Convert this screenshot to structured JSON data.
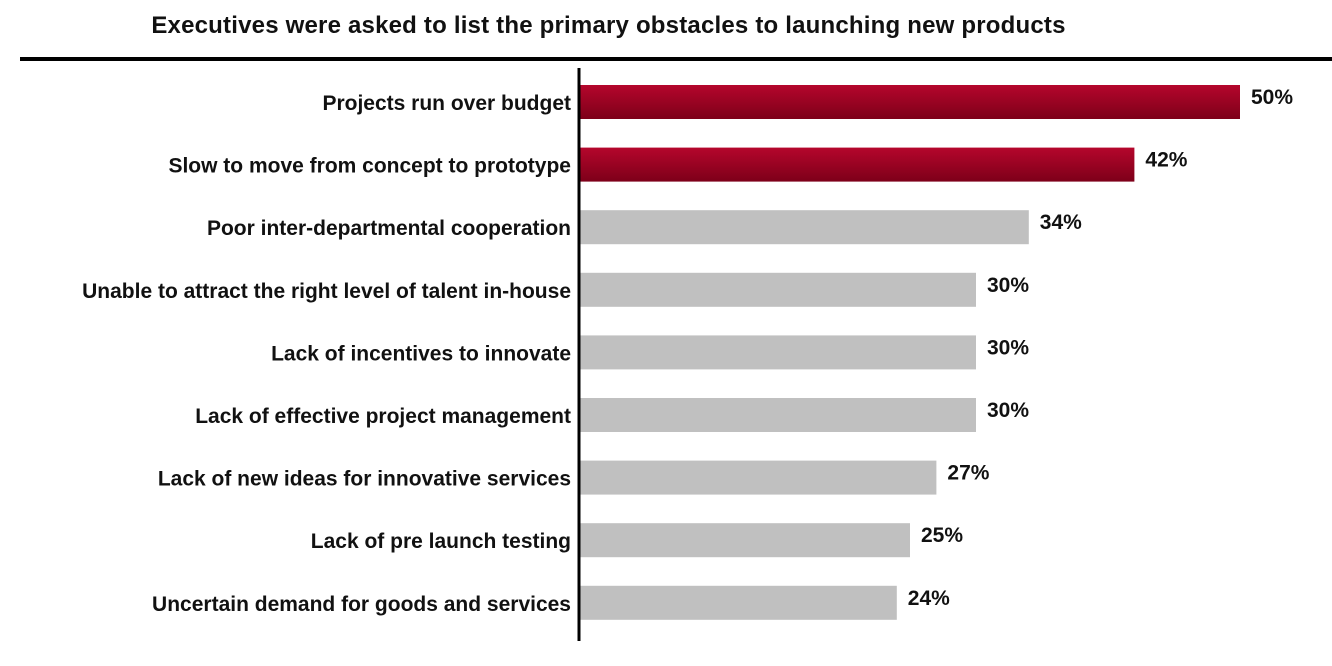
{
  "chart_data": {
    "type": "bar",
    "orientation": "horizontal",
    "title": "Executives were asked to list the primary obstacles to launching new products",
    "categories": [
      "Projects run over budget",
      "Slow to move from concept to prototype",
      "Poor inter-departmental cooperation",
      "Unable to attract the right level of talent in-house",
      "Lack of incentives to innovate",
      "Lack of effective project management",
      "Lack of new ideas for innovative services",
      "Lack of pre launch testing",
      "Uncertain demand for goods and services"
    ],
    "values": [
      50,
      42,
      34,
      30,
      30,
      30,
      27,
      25,
      24
    ],
    "value_labels": [
      "50%",
      "42%",
      "34%",
      "30%",
      "30%",
      "30%",
      "27%",
      "25%",
      "24%"
    ],
    "unit": "%",
    "highlight_count": 2,
    "colors": {
      "highlight_top": "#b5062c",
      "highlight_bottom": "#7d0019",
      "normal": "#c0c0c0",
      "axis": "#000000",
      "text": "#111111"
    },
    "grid": false,
    "legend": "none"
  }
}
